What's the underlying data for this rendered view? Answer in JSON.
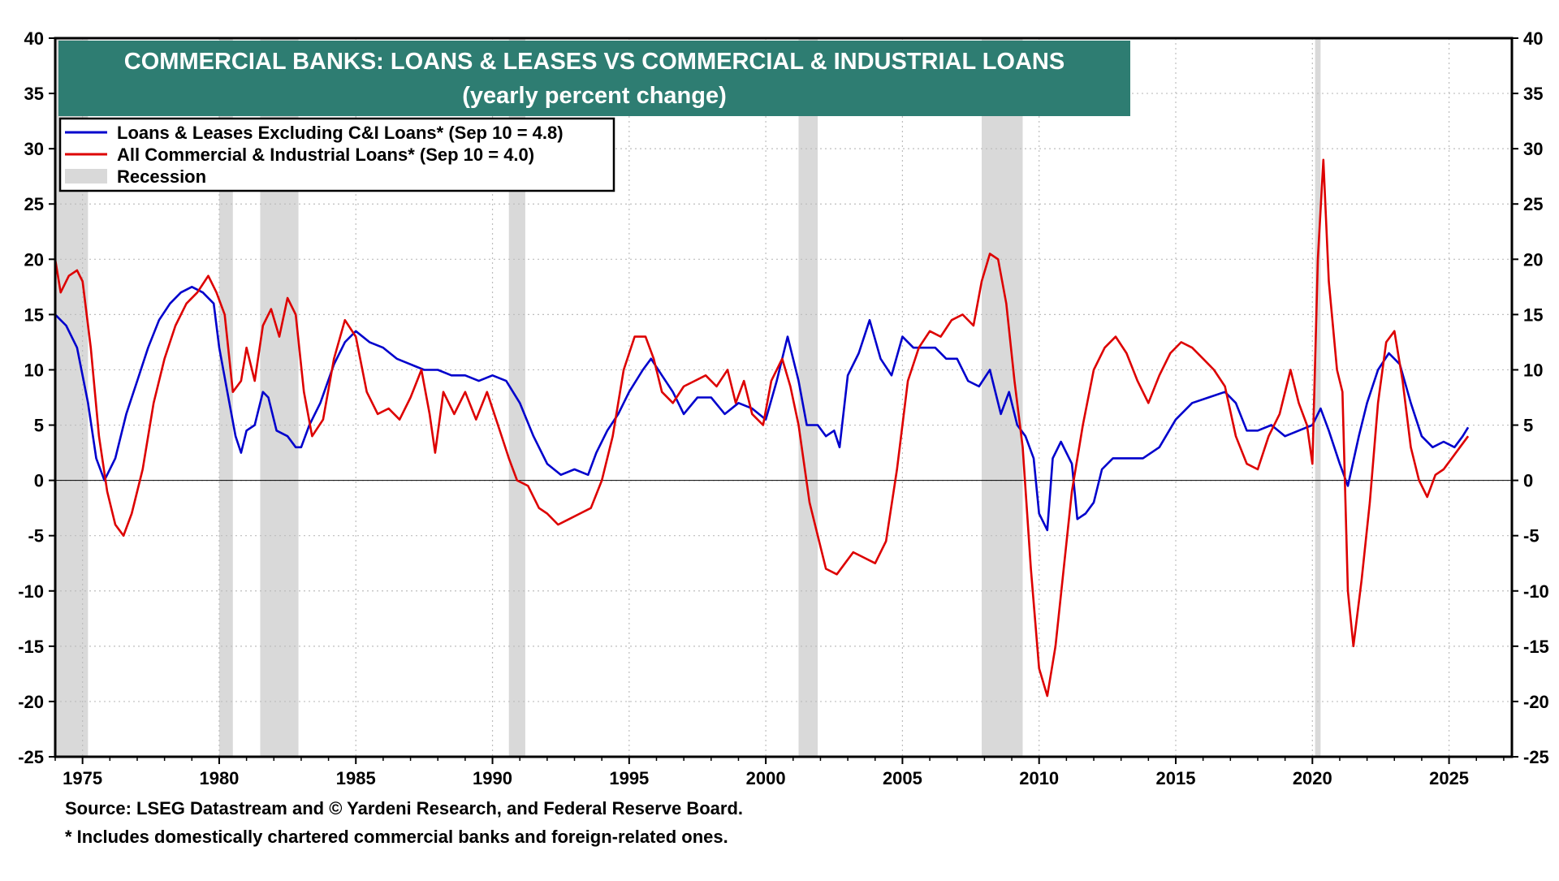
{
  "chart_data": {
    "type": "line",
    "title": "COMMERCIAL BANKS: LOANS & LEASES VS COMMERCIAL & INDUSTRIAL LOANS",
    "subtitle": "(yearly percent change)",
    "xlabel": "",
    "ylabel": "",
    "xlim": [
      1974.0,
      2027.3
    ],
    "ylim": [
      -25,
      40
    ],
    "y_ticks": [
      -25,
      -20,
      -15,
      -10,
      -5,
      0,
      5,
      10,
      15,
      20,
      25,
      30,
      35,
      40
    ],
    "x_ticks": [
      1975,
      1980,
      1985,
      1990,
      1995,
      2000,
      2005,
      2010,
      2015,
      2020,
      2025
    ],
    "grid": true,
    "dual_y_axis": true,
    "legend_position": "top-left",
    "title_bar_color": "#2e7d72",
    "recessions": [
      [
        1973.9,
        1975.2
      ],
      [
        1980.0,
        1980.5
      ],
      [
        1981.5,
        1982.9
      ],
      [
        1990.6,
        1991.2
      ],
      [
        2001.2,
        2001.9
      ],
      [
        2007.9,
        2009.4
      ],
      [
        2020.1,
        2020.3
      ]
    ],
    "recession_label": "Recession",
    "recession_color": "#d9d9d9",
    "series": [
      {
        "name": "Loans & Leases Excluding C&I Loans* (Sep 10 = 4.8)",
        "color": "#0000cc",
        "points": [
          [
            1974.0,
            15.0
          ],
          [
            1974.4,
            14.0
          ],
          [
            1974.8,
            12.0
          ],
          [
            1975.2,
            7.0
          ],
          [
            1975.5,
            2.0
          ],
          [
            1975.8,
            0.0
          ],
          [
            1976.2,
            2.0
          ],
          [
            1976.6,
            6.0
          ],
          [
            1977.0,
            9.0
          ],
          [
            1977.4,
            12.0
          ],
          [
            1977.8,
            14.5
          ],
          [
            1978.2,
            16.0
          ],
          [
            1978.6,
            17.0
          ],
          [
            1979.0,
            17.5
          ],
          [
            1979.4,
            17.0
          ],
          [
            1979.8,
            16.0
          ],
          [
            1980.0,
            12.0
          ],
          [
            1980.3,
            8.0
          ],
          [
            1980.6,
            4.0
          ],
          [
            1980.8,
            2.5
          ],
          [
            1981.0,
            4.5
          ],
          [
            1981.3,
            5.0
          ],
          [
            1981.6,
            8.0
          ],
          [
            1981.8,
            7.5
          ],
          [
            1982.1,
            4.5
          ],
          [
            1982.5,
            4.0
          ],
          [
            1982.8,
            3.0
          ],
          [
            1983.0,
            3.0
          ],
          [
            1983.3,
            5.0
          ],
          [
            1983.7,
            7.0
          ],
          [
            1984.2,
            10.5
          ],
          [
            1984.6,
            12.5
          ],
          [
            1985.0,
            13.5
          ],
          [
            1985.5,
            12.5
          ],
          [
            1986.0,
            12.0
          ],
          [
            1986.5,
            11.0
          ],
          [
            1987.0,
            10.5
          ],
          [
            1987.5,
            10.0
          ],
          [
            1988.0,
            10.0
          ],
          [
            1988.5,
            9.5
          ],
          [
            1989.0,
            9.5
          ],
          [
            1989.5,
            9.0
          ],
          [
            1990.0,
            9.5
          ],
          [
            1990.5,
            9.0
          ],
          [
            1991.0,
            7.0
          ],
          [
            1991.5,
            4.0
          ],
          [
            1992.0,
            1.5
          ],
          [
            1992.5,
            0.5
          ],
          [
            1993.0,
            1.0
          ],
          [
            1993.5,
            0.5
          ],
          [
            1993.8,
            2.5
          ],
          [
            1994.2,
            4.5
          ],
          [
            1994.6,
            6.0
          ],
          [
            1995.0,
            8.0
          ],
          [
            1995.5,
            10.0
          ],
          [
            1995.8,
            11.0
          ],
          [
            1996.2,
            9.5
          ],
          [
            1996.6,
            8.0
          ],
          [
            1997.0,
            6.0
          ],
          [
            1997.5,
            7.5
          ],
          [
            1998.0,
            7.5
          ],
          [
            1998.5,
            6.0
          ],
          [
            1999.0,
            7.0
          ],
          [
            1999.5,
            6.5
          ],
          [
            2000.0,
            5.5
          ],
          [
            2000.4,
            9.0
          ],
          [
            2000.8,
            13.0
          ],
          [
            2001.2,
            9.0
          ],
          [
            2001.5,
            5.0
          ],
          [
            2001.9,
            5.0
          ],
          [
            2002.2,
            4.0
          ],
          [
            2002.5,
            4.5
          ],
          [
            2002.7,
            3.0
          ],
          [
            2003.0,
            9.5
          ],
          [
            2003.4,
            11.5
          ],
          [
            2003.8,
            14.5
          ],
          [
            2004.2,
            11.0
          ],
          [
            2004.6,
            9.5
          ],
          [
            2005.0,
            13.0
          ],
          [
            2005.4,
            12.0
          ],
          [
            2005.8,
            12.0
          ],
          [
            2006.2,
            12.0
          ],
          [
            2006.6,
            11.0
          ],
          [
            2007.0,
            11.0
          ],
          [
            2007.4,
            9.0
          ],
          [
            2007.8,
            8.5
          ],
          [
            2008.2,
            10.0
          ],
          [
            2008.6,
            6.0
          ],
          [
            2008.9,
            8.0
          ],
          [
            2009.2,
            5.0
          ],
          [
            2009.5,
            4.0
          ],
          [
            2009.8,
            2.0
          ],
          [
            2010.0,
            -3.0
          ],
          [
            2010.3,
            -4.5
          ],
          [
            2010.5,
            2.0
          ],
          [
            2010.8,
            3.5
          ],
          [
            2011.2,
            1.5
          ],
          [
            2011.4,
            -3.5
          ],
          [
            2011.7,
            -3.0
          ],
          [
            2012.0,
            -2.0
          ],
          [
            2012.3,
            1.0
          ],
          [
            2012.7,
            2.0
          ],
          [
            2013.2,
            2.0
          ],
          [
            2013.8,
            2.0
          ],
          [
            2014.4,
            3.0
          ],
          [
            2015.0,
            5.5
          ],
          [
            2015.6,
            7.0
          ],
          [
            2016.2,
            7.5
          ],
          [
            2016.8,
            8.0
          ],
          [
            2017.2,
            7.0
          ],
          [
            2017.6,
            4.5
          ],
          [
            2018.0,
            4.5
          ],
          [
            2018.5,
            5.0
          ],
          [
            2019.0,
            4.0
          ],
          [
            2019.5,
            4.5
          ],
          [
            2020.0,
            5.0
          ],
          [
            2020.3,
            6.5
          ],
          [
            2020.6,
            4.5
          ],
          [
            2021.0,
            1.5
          ],
          [
            2021.3,
            -0.5
          ],
          [
            2021.7,
            4.0
          ],
          [
            2022.0,
            7.0
          ],
          [
            2022.4,
            10.0
          ],
          [
            2022.8,
            11.5
          ],
          [
            2023.2,
            10.5
          ],
          [
            2023.6,
            7.0
          ],
          [
            2024.0,
            4.0
          ],
          [
            2024.4,
            3.0
          ],
          [
            2024.8,
            3.5
          ],
          [
            2025.2,
            3.0
          ],
          [
            2025.5,
            4.0
          ],
          [
            2025.7,
            4.8
          ]
        ]
      },
      {
        "name": "All Commercial & Industrial Loans* (Sep 10 = 4.0)",
        "color": "#dd0000",
        "points": [
          [
            1974.0,
            20.0
          ],
          [
            1974.2,
            17.0
          ],
          [
            1974.5,
            18.5
          ],
          [
            1974.8,
            19.0
          ],
          [
            1975.0,
            18.0
          ],
          [
            1975.3,
            12.0
          ],
          [
            1975.6,
            4.0
          ],
          [
            1975.9,
            -1.0
          ],
          [
            1976.2,
            -4.0
          ],
          [
            1976.5,
            -5.0
          ],
          [
            1976.8,
            -3.0
          ],
          [
            1977.2,
            1.0
          ],
          [
            1977.6,
            7.0
          ],
          [
            1978.0,
            11.0
          ],
          [
            1978.4,
            14.0
          ],
          [
            1978.8,
            16.0
          ],
          [
            1979.2,
            17.0
          ],
          [
            1979.6,
            18.5
          ],
          [
            1979.9,
            17.0
          ],
          [
            1980.2,
            15.0
          ],
          [
            1980.5,
            8.0
          ],
          [
            1980.8,
            9.0
          ],
          [
            1981.0,
            12.0
          ],
          [
            1981.3,
            9.0
          ],
          [
            1981.6,
            14.0
          ],
          [
            1981.9,
            15.5
          ],
          [
            1982.2,
            13.0
          ],
          [
            1982.5,
            16.5
          ],
          [
            1982.8,
            15.0
          ],
          [
            1983.1,
            8.0
          ],
          [
            1983.4,
            4.0
          ],
          [
            1983.8,
            5.5
          ],
          [
            1984.2,
            11.0
          ],
          [
            1984.6,
            14.5
          ],
          [
            1985.0,
            13.0
          ],
          [
            1985.4,
            8.0
          ],
          [
            1985.8,
            6.0
          ],
          [
            1986.2,
            6.5
          ],
          [
            1986.6,
            5.5
          ],
          [
            1987.0,
            7.5
          ],
          [
            1987.4,
            10.0
          ],
          [
            1987.7,
            6.0
          ],
          [
            1987.9,
            2.5
          ],
          [
            1988.2,
            8.0
          ],
          [
            1988.6,
            6.0
          ],
          [
            1989.0,
            8.0
          ],
          [
            1989.4,
            5.5
          ],
          [
            1989.8,
            8.0
          ],
          [
            1990.2,
            5.0
          ],
          [
            1990.6,
            2.0
          ],
          [
            1990.9,
            0.0
          ],
          [
            1991.3,
            -0.5
          ],
          [
            1991.7,
            -2.5
          ],
          [
            1992.0,
            -3.0
          ],
          [
            1992.4,
            -4.0
          ],
          [
            1992.8,
            -3.5
          ],
          [
            1993.2,
            -3.0
          ],
          [
            1993.6,
            -2.5
          ],
          [
            1994.0,
            0.0
          ],
          [
            1994.4,
            4.0
          ],
          [
            1994.8,
            10.0
          ],
          [
            1995.2,
            13.0
          ],
          [
            1995.6,
            13.0
          ],
          [
            1995.9,
            11.0
          ],
          [
            1996.2,
            8.0
          ],
          [
            1996.6,
            7.0
          ],
          [
            1997.0,
            8.5
          ],
          [
            1997.4,
            9.0
          ],
          [
            1997.8,
            9.5
          ],
          [
            1998.2,
            8.5
          ],
          [
            1998.6,
            10.0
          ],
          [
            1998.9,
            7.0
          ],
          [
            1999.2,
            9.0
          ],
          [
            1999.5,
            6.0
          ],
          [
            1999.9,
            5.0
          ],
          [
            2000.2,
            9.0
          ],
          [
            2000.6,
            11.0
          ],
          [
            2000.9,
            8.5
          ],
          [
            2001.2,
            5.0
          ],
          [
            2001.6,
            -2.0
          ],
          [
            2001.9,
            -5.0
          ],
          [
            2002.2,
            -8.0
          ],
          [
            2002.6,
            -8.5
          ],
          [
            2002.9,
            -7.5
          ],
          [
            2003.2,
            -6.5
          ],
          [
            2003.6,
            -7.0
          ],
          [
            2004.0,
            -7.5
          ],
          [
            2004.4,
            -5.5
          ],
          [
            2004.8,
            1.0
          ],
          [
            2005.2,
            9.0
          ],
          [
            2005.6,
            12.0
          ],
          [
            2006.0,
            13.5
          ],
          [
            2006.4,
            13.0
          ],
          [
            2006.8,
            14.5
          ],
          [
            2007.2,
            15.0
          ],
          [
            2007.6,
            14.0
          ],
          [
            2007.9,
            18.0
          ],
          [
            2008.2,
            20.5
          ],
          [
            2008.5,
            20.0
          ],
          [
            2008.8,
            16.0
          ],
          [
            2009.1,
            9.0
          ],
          [
            2009.4,
            3.0
          ],
          [
            2009.7,
            -8.0
          ],
          [
            2010.0,
            -17.0
          ],
          [
            2010.3,
            -19.5
          ],
          [
            2010.6,
            -15.0
          ],
          [
            2010.9,
            -8.0
          ],
          [
            2011.2,
            -1.0
          ],
          [
            2011.6,
            5.0
          ],
          [
            2012.0,
            10.0
          ],
          [
            2012.4,
            12.0
          ],
          [
            2012.8,
            13.0
          ],
          [
            2013.2,
            11.5
          ],
          [
            2013.6,
            9.0
          ],
          [
            2014.0,
            7.0
          ],
          [
            2014.4,
            9.5
          ],
          [
            2014.8,
            11.5
          ],
          [
            2015.2,
            12.5
          ],
          [
            2015.6,
            12.0
          ],
          [
            2016.0,
            11.0
          ],
          [
            2016.4,
            10.0
          ],
          [
            2016.8,
            8.5
          ],
          [
            2017.2,
            4.0
          ],
          [
            2017.6,
            1.5
          ],
          [
            2018.0,
            1.0
          ],
          [
            2018.4,
            4.0
          ],
          [
            2018.8,
            6.0
          ],
          [
            2019.2,
            10.0
          ],
          [
            2019.5,
            7.0
          ],
          [
            2019.8,
            5.0
          ],
          [
            2020.0,
            1.5
          ],
          [
            2020.2,
            20.0
          ],
          [
            2020.4,
            29.0
          ],
          [
            2020.6,
            18.0
          ],
          [
            2020.9,
            10.0
          ],
          [
            2021.1,
            8.0
          ],
          [
            2021.3,
            -10.0
          ],
          [
            2021.5,
            -15.0
          ],
          [
            2021.8,
            -9.0
          ],
          [
            2022.1,
            -2.0
          ],
          [
            2022.4,
            7.0
          ],
          [
            2022.7,
            12.5
          ],
          [
            2023.0,
            13.5
          ],
          [
            2023.3,
            9.0
          ],
          [
            2023.6,
            3.0
          ],
          [
            2023.9,
            0.0
          ],
          [
            2024.2,
            -1.5
          ],
          [
            2024.5,
            0.5
          ],
          [
            2024.8,
            1.0
          ],
          [
            2025.1,
            2.0
          ],
          [
            2025.4,
            3.0
          ],
          [
            2025.7,
            4.0
          ]
        ]
      }
    ],
    "source_note": "Source: LSEG Datastream and © Yardeni Research, and Federal Reserve Board.",
    "footnote": "* Includes domestically chartered commercial banks and foreign-related ones."
  }
}
